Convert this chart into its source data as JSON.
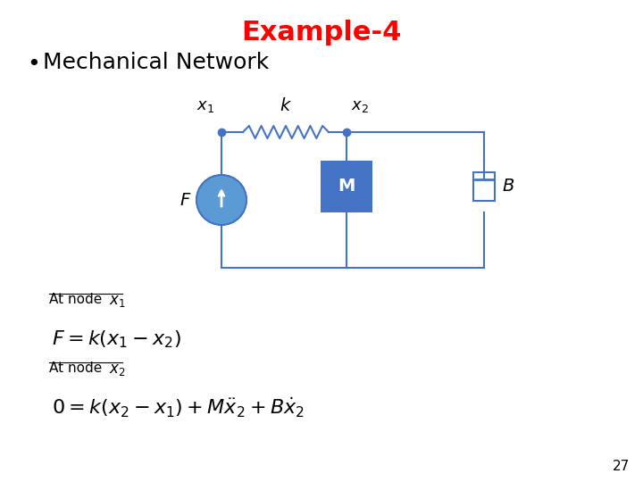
{
  "title": "Example-4",
  "title_color": "#FF0000",
  "title_fontsize": 22,
  "bullet_text": "Mechanical Network",
  "bullet_fontsize": 18,
  "line_color": "#4472C4",
  "node_color": "#4472C4",
  "mass_color": "#4472C4",
  "source_color": "#5B9BD5",
  "damper_color": "#FFFFFF",
  "damper_border": "#4472C4",
  "bg_color": "#FFFFFF",
  "page_number": "27",
  "mass_label": "M",
  "at_node_text": "At node"
}
